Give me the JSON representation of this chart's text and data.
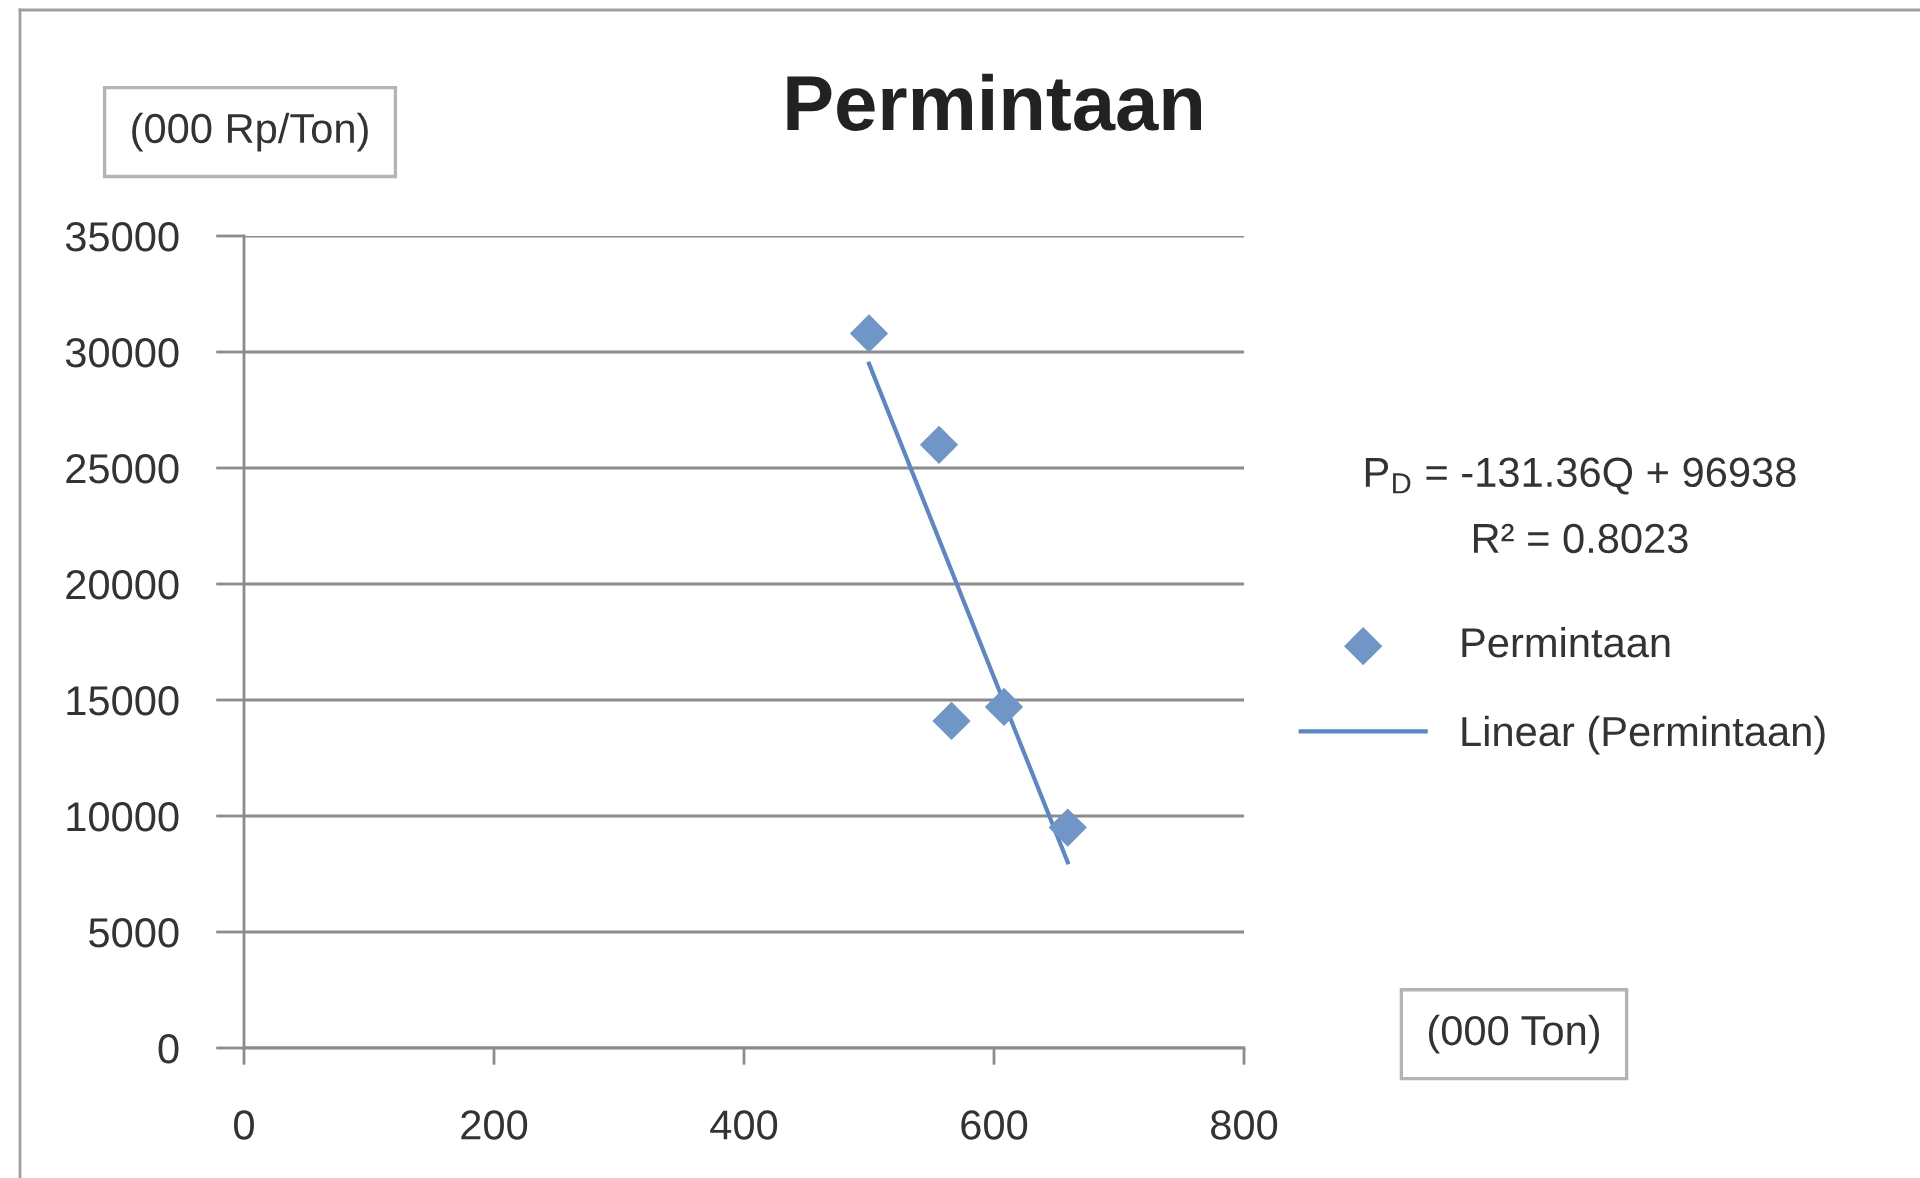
{
  "chart_data": {
    "type": "scatter",
    "title": "Permintaan",
    "xlabel": "(000 Ton)",
    "ylabel": "(000 Rp/Ton)",
    "xlim": [
      0,
      800
    ],
    "xticks": [
      0,
      200,
      400,
      600,
      800
    ],
    "ylim": [
      0,
      35000
    ],
    "yticks": [
      0,
      5000,
      10000,
      15000,
      20000,
      25000,
      30000,
      35000
    ],
    "grid": "y",
    "legend": "right",
    "series": [
      {
        "name": "Permintaan",
        "marker": "diamond",
        "color": "#7096c8",
        "x": [
          500,
          556,
          566,
          608,
          659
        ],
        "values": [
          30800,
          26000,
          14100,
          14700,
          9500
        ]
      },
      {
        "name": "Linear (Permintaan)",
        "type": "line",
        "color": "#5b87c4",
        "x": [
          500,
          659
        ],
        "values": [
          29500,
          8000
        ]
      }
    ],
    "annotations": [
      "P$_{D}$ = -131.36Q + 96938",
      "R² = 0.8023"
    ]
  }
}
